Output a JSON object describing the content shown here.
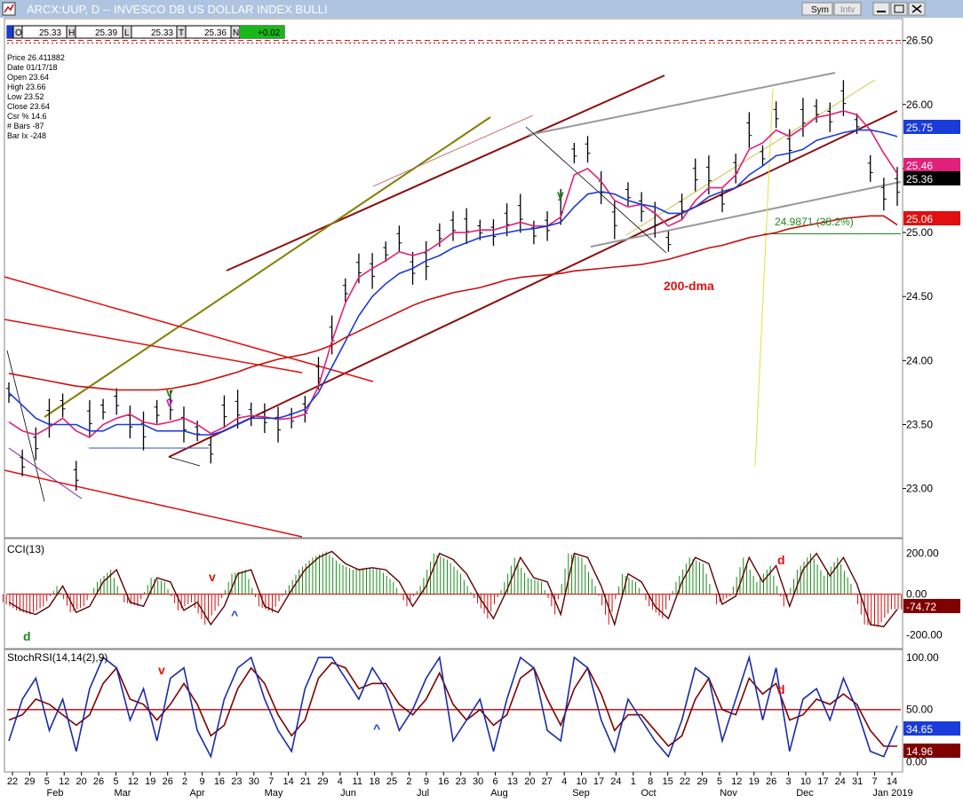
{
  "window": {
    "title": "ARCX:UUP, D -- INVESCO DB US DOLLAR INDEX BULLI",
    "sym_button": "Sym",
    "intv_button": "Intv",
    "title_bar_color": "#aec4e0"
  },
  "quote_bar": {
    "open_label": "O",
    "open": "25.33",
    "high_label": "H",
    "high": "25.39",
    "low_label": "L",
    "low": "25.33",
    "close_label": "T",
    "close": "25.36",
    "change_label": "N",
    "change": "+0.02",
    "change_color": "#18b818"
  },
  "data_window": {
    "lines": [
      "Price  26.411882",
      "Date   01/17/18",
      "Open   23.64",
      "High   23.66",
      "Low    23.52",
      "Close  23.64",
      "Csr %  14.6",
      "# Bars -87",
      "Bar Ix -248"
    ]
  },
  "price_panel": {
    "y_ticks": [
      "26.50",
      "26.00",
      "25.50",
      "25.00",
      "24.50",
      "24.00",
      "23.50",
      "23.00"
    ],
    "y_tick_values": [
      26.5,
      26.0,
      25.5,
      25.0,
      24.5,
      24.0,
      23.5,
      23.0
    ],
    "y_range": [
      22.63,
      26.65
    ],
    "value_badges": [
      {
        "text": "25.75",
        "value": 25.75,
        "color": "#1a3cd8"
      },
      {
        "text": "25.46",
        "value": 25.46,
        "color": "#e0207a"
      },
      {
        "text": "25.36",
        "value": 25.36,
        "color": "#000000"
      },
      {
        "text": "25.06",
        "value": 25.06,
        "color": "#e01010"
      }
    ],
    "annotations": {
      "dma_label": "200-dma",
      "fib_label": "24.9871 (38.2%)",
      "marks": [
        "v",
        "v",
        "v"
      ]
    }
  },
  "cci_panel": {
    "title": "CCI(13)",
    "y_ticks": [
      "200.00",
      "0.00",
      "-200.00"
    ],
    "y_tick_values": [
      200,
      0,
      -200
    ],
    "y_range": [
      -255,
      260
    ],
    "value_badge": {
      "text": "-74.72",
      "value": -74.72,
      "color": "#800000"
    },
    "annotations": {
      "d1": "d",
      "v": "v",
      "up": "^",
      "d2": "d"
    }
  },
  "stochrsi_panel": {
    "title": "StochRSI(14,14(2),9)",
    "y_ticks": [
      "100.00",
      "50.00",
      "0.00"
    ],
    "y_tick_values": [
      100,
      50,
      0
    ],
    "y_range": [
      -8,
      105
    ],
    "value_badges": [
      {
        "text": "34.65",
        "value": 34.65,
        "color": "#1a3cd8"
      },
      {
        "text": "14.96",
        "value": 14.96,
        "color": "#800000"
      }
    ],
    "annotations": {
      "v": "v",
      "up": "^",
      "d": "d"
    }
  },
  "x_axis": {
    "day_labels": [
      "22",
      "29",
      "5",
      "12",
      "20",
      "26",
      "5",
      "12",
      "19",
      "26",
      "2",
      "9",
      "16",
      "23",
      "30",
      "7",
      "14",
      "21",
      "29",
      "4",
      "11",
      "18",
      "25",
      "2",
      "9",
      "16",
      "23",
      "30",
      "6",
      "13",
      "20",
      "27",
      "4",
      "10",
      "17",
      "24",
      "1",
      "8",
      "15",
      "22",
      "29",
      "5",
      "12",
      "19",
      "26",
      "3",
      "10",
      "17",
      "24",
      "31",
      "7",
      "14"
    ],
    "month_labels": [
      "Feb",
      "Mar",
      "Apr",
      "May",
      "Jun",
      "Jul",
      "Aug",
      "Sep",
      "Oct",
      "Nov",
      "Dec",
      "Jan 2019"
    ]
  },
  "chart_data": {
    "type": "line",
    "title": "ARCX:UUP, D -- INVESCO DB US DOLLAR INDEX BULLI",
    "x_start": "2018-01-22",
    "x_end": "2019-01-14",
    "series": [
      {
        "name": "Price",
        "values": [
          23.75,
          23.2,
          23.35,
          23.55,
          23.65,
          23.1,
          23.55,
          23.62,
          23.68,
          23.52,
          23.45,
          23.6,
          23.65,
          23.5,
          23.45,
          23.3,
          23.6,
          23.62,
          23.58,
          23.55,
          23.5,
          23.55,
          23.62,
          23.9,
          24.2,
          24.55,
          24.72,
          24.7,
          24.85,
          24.95,
          24.72,
          24.78,
          24.98,
          25.05,
          25.05,
          25.02,
          25.0,
          25.1,
          25.15,
          25.0,
          25.05,
          25.2,
          25.62,
          25.65,
          25.35,
          25.1,
          25.3,
          25.2,
          25.1,
          24.93,
          25.2,
          25.45,
          25.45,
          25.25,
          25.5,
          25.8,
          25.6,
          25.92,
          25.68,
          25.9,
          25.95,
          25.9,
          26.05,
          25.85,
          25.5,
          25.3,
          25.36
        ]
      },
      {
        "name": "MA fast",
        "values": [
          23.52,
          23.45,
          23.42,
          23.48,
          23.55,
          23.45,
          23.4,
          23.5,
          23.55,
          23.58,
          23.52,
          23.5,
          23.52,
          23.55,
          23.5,
          23.43,
          23.48,
          23.55,
          23.57,
          23.56,
          23.54,
          23.55,
          23.58,
          23.8,
          24.15,
          24.45,
          24.65,
          24.72,
          24.78,
          24.85,
          24.82,
          24.85,
          24.92,
          25.0,
          25.0,
          25.02,
          25.02,
          25.05,
          25.08,
          25.05,
          25.05,
          25.12,
          25.45,
          25.5,
          25.4,
          25.25,
          25.2,
          25.22,
          25.15,
          25.05,
          25.1,
          25.25,
          25.35,
          25.35,
          25.45,
          25.65,
          25.7,
          25.8,
          25.75,
          25.82,
          25.9,
          25.92,
          25.95,
          25.92,
          25.8,
          25.62,
          25.46
        ]
      },
      {
        "name": "MA slow",
        "values": [
          23.75,
          23.65,
          23.55,
          23.5,
          23.5,
          23.5,
          23.45,
          23.45,
          23.5,
          23.5,
          23.5,
          23.45,
          23.45,
          23.45,
          23.42,
          23.42,
          23.45,
          23.5,
          23.55,
          23.55,
          23.55,
          23.58,
          23.62,
          23.75,
          23.95,
          24.15,
          24.35,
          24.5,
          24.6,
          24.68,
          24.72,
          24.78,
          24.82,
          24.88,
          24.92,
          24.96,
          24.98,
          25.0,
          25.02,
          25.03,
          25.05,
          25.08,
          25.2,
          25.3,
          25.32,
          25.3,
          25.25,
          25.22,
          25.2,
          25.15,
          25.15,
          25.2,
          25.28,
          25.32,
          25.35,
          25.45,
          25.52,
          25.6,
          25.62,
          25.65,
          25.72,
          25.75,
          25.78,
          25.8,
          25.8,
          25.78,
          25.75
        ]
      },
      {
        "name": "200-dma",
        "values": [
          23.9,
          23.88,
          23.86,
          23.84,
          23.82,
          23.8,
          23.79,
          23.78,
          23.77,
          23.77,
          23.77,
          23.77,
          23.78,
          23.8,
          23.82,
          23.85,
          23.88,
          23.91,
          23.95,
          23.98,
          24.01,
          24.03,
          24.05,
          24.08,
          24.12,
          24.18,
          24.23,
          24.28,
          24.33,
          24.38,
          24.43,
          24.47,
          24.5,
          24.53,
          24.55,
          24.57,
          24.6,
          24.63,
          24.65,
          24.66,
          24.67,
          24.68,
          24.7,
          24.71,
          24.72,
          24.73,
          24.74,
          24.75,
          24.77,
          24.79,
          24.82,
          24.85,
          24.88,
          24.9,
          24.93,
          24.96,
          24.98,
          25.0,
          25.03,
          25.05,
          25.07,
          25.09,
          25.11,
          25.12,
          25.13,
          25.13,
          25.06
        ]
      },
      {
        "name": "CCI",
        "values": [
          -40,
          -80,
          -100,
          -60,
          40,
          -90,
          -60,
          60,
          120,
          -40,
          -60,
          80,
          60,
          -80,
          -40,
          -150,
          -60,
          100,
          120,
          -60,
          -90,
          20,
          120,
          180,
          210,
          150,
          120,
          130,
          120,
          60,
          -60,
          40,
          200,
          170,
          100,
          -20,
          -120,
          20,
          180,
          80,
          60,
          -100,
          200,
          180,
          40,
          -150,
          100,
          60,
          -60,
          -120,
          60,
          180,
          150,
          -50,
          -10,
          180,
          60,
          140,
          -60,
          120,
          200,
          90,
          180,
          50,
          -150,
          -160,
          -74.72
        ]
      },
      {
        "name": "StochRSI",
        "values": [
          20,
          60,
          80,
          30,
          60,
          10,
          70,
          100,
          90,
          40,
          70,
          20,
          80,
          90,
          30,
          5,
          60,
          90,
          100,
          60,
          30,
          10,
          70,
          100,
          100,
          80,
          60,
          90,
          70,
          30,
          50,
          80,
          100,
          20,
          40,
          60,
          10,
          60,
          100,
          90,
          30,
          20,
          100,
          90,
          40,
          10,
          60,
          40,
          20,
          5,
          40,
          90,
          80,
          20,
          60,
          100,
          40,
          90,
          10,
          60,
          70,
          40,
          80,
          50,
          10,
          5,
          34.65
        ]
      },
      {
        "name": "StochRSI signal",
        "values": [
          40,
          45,
          60,
          55,
          45,
          35,
          45,
          75,
          90,
          60,
          55,
          40,
          55,
          75,
          55,
          25,
          35,
          70,
          90,
          75,
          45,
          25,
          40,
          80,
          95,
          90,
          70,
          75,
          75,
          55,
          45,
          60,
          85,
          55,
          40,
          50,
          35,
          45,
          80,
          90,
          60,
          35,
          70,
          90,
          65,
          30,
          45,
          45,
          30,
          15,
          25,
          60,
          80,
          50,
          45,
          80,
          65,
          75,
          40,
          45,
          60,
          55,
          65,
          55,
          30,
          15,
          14.96
        ]
      }
    ],
    "ylim": [
      22.63,
      26.65
    ],
    "grid": false,
    "legend": "none"
  }
}
